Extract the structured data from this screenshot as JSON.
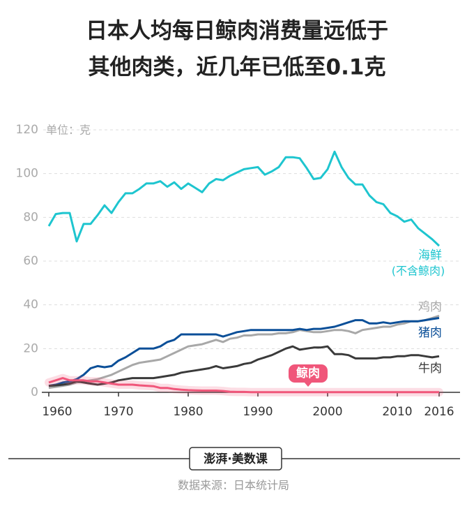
{
  "chart_data": {
    "type": "line",
    "title": [
      "日本人均每日鲸肉消费量远低于",
      "其他肉类，近几年已低至0.1克"
    ],
    "y_unit": "单位：克",
    "x": [
      1960,
      1961,
      1962,
      1963,
      1964,
      1965,
      1966,
      1967,
      1968,
      1969,
      1970,
      1971,
      1972,
      1973,
      1974,
      1975,
      1976,
      1977,
      1978,
      1979,
      1980,
      1981,
      1982,
      1983,
      1984,
      1985,
      1986,
      1987,
      1988,
      1989,
      1990,
      1991,
      1992,
      1993,
      1994,
      1995,
      1996,
      1997,
      1998,
      1999,
      2000,
      2001,
      2002,
      2003,
      2004,
      2005,
      2006,
      2007,
      2008,
      2009,
      2010,
      2011,
      2012,
      2013,
      2014,
      2015,
      2016
    ],
    "xlim": [
      1959,
      2019
    ],
    "xticks": [
      1960,
      1970,
      1980,
      1990,
      2000,
      2010,
      2016
    ],
    "ylim": [
      0,
      120
    ],
    "yticks": [
      0,
      20,
      40,
      60,
      80,
      100,
      120
    ],
    "grid": true,
    "series": [
      {
        "name": "海鲜",
        "label_note": "(不含鲸肉)",
        "color": "#1ec5cf",
        "values": [
          76,
          81.5,
          82,
          82,
          69,
          77,
          77,
          81,
          85.5,
          82,
          87,
          91,
          91,
          93,
          95.5,
          95.5,
          96.5,
          94,
          96,
          93,
          95.5,
          93.5,
          91.5,
          95.5,
          97.5,
          97,
          99,
          100.5,
          102,
          102.5,
          103,
          99.5,
          101,
          103,
          107.5,
          107.5,
          107,
          102.5,
          97.5,
          98,
          102,
          110,
          103,
          98,
          95,
          95,
          90,
          87,
          86,
          82,
          80.5,
          78,
          79,
          75,
          72.5,
          70,
          67
        ]
      },
      {
        "name": "鸡肉",
        "color": "#a8a8a8",
        "values": [
          2,
          2.5,
          3,
          3.5,
          4.5,
          5,
          5.5,
          6,
          7,
          8,
          9.5,
          11,
          12.5,
          13.5,
          14,
          14.5,
          15,
          16.5,
          18,
          19.5,
          21,
          21.5,
          22,
          23,
          24,
          23,
          24.5,
          25,
          26,
          26,
          26.5,
          26.5,
          26.5,
          27,
          27,
          27.5,
          28.5,
          28,
          27.5,
          27.5,
          28,
          28.5,
          28.5,
          28,
          27,
          28.5,
          29,
          29.5,
          30,
          30,
          31,
          31.5,
          32.5,
          32.5,
          33,
          34,
          35
        ]
      },
      {
        "name": "猪肉",
        "color": "#0b4f98",
        "values": [
          3,
          3.5,
          4.5,
          5,
          6,
          8,
          11,
          12,
          11.5,
          12,
          14.5,
          16,
          18,
          20,
          20,
          20,
          21,
          23,
          24,
          26.5,
          26.5,
          26.5,
          26.5,
          26.5,
          26.5,
          25.5,
          26.5,
          27.5,
          28,
          28.5,
          28.5,
          28.5,
          28.5,
          28.5,
          28.5,
          28.5,
          29,
          28.5,
          29,
          29,
          29.5,
          30,
          31,
          32,
          33,
          33,
          31.5,
          31.5,
          32,
          31.5,
          32,
          32.5,
          32.5,
          32.5,
          33,
          33.5,
          34
        ]
      },
      {
        "name": "牛肉",
        "color": "#3a3a3a",
        "values": [
          3,
          3.2,
          3.5,
          4,
          5,
          4.5,
          4,
          3.5,
          4,
          4.5,
          5.5,
          6,
          6.5,
          6.5,
          6.5,
          6.5,
          7,
          7.5,
          8,
          9,
          9.5,
          10,
          10.5,
          11,
          12,
          11,
          11.5,
          12,
          13,
          13.5,
          15,
          16,
          17,
          18.5,
          20,
          21,
          19.5,
          20,
          20.5,
          20.5,
          21,
          17.5,
          17.5,
          17,
          15.5,
          15.5,
          15.5,
          15.5,
          16,
          16,
          16.5,
          16.5,
          17,
          17,
          16.5,
          16,
          16.5
        ]
      },
      {
        "name": "鲸肉",
        "color": "#f0567a",
        "values": [
          4.5,
          5.5,
          6.5,
          5.5,
          5.5,
          5.5,
          5,
          5,
          4.5,
          4,
          3.5,
          3.5,
          3.5,
          3.2,
          3,
          2.8,
          2,
          2,
          1.5,
          1.2,
          1,
          0.9,
          0.8,
          0.8,
          0.8,
          0.6,
          0.3,
          0.2,
          0.2,
          0.1,
          0.1,
          0.1,
          0.1,
          0.1,
          0.1,
          0.1,
          0.1,
          0.1,
          0.1,
          0.1,
          0.1,
          0.1,
          0.1,
          0.1,
          0.1,
          0.1,
          0.1,
          0.1,
          0.1,
          0.1,
          0.1,
          0.1,
          0.1,
          0.1,
          0.1,
          0.1,
          0.1
        ]
      }
    ],
    "logo": "澎湃·美数课",
    "source": "数据来源：日本统计局"
  }
}
